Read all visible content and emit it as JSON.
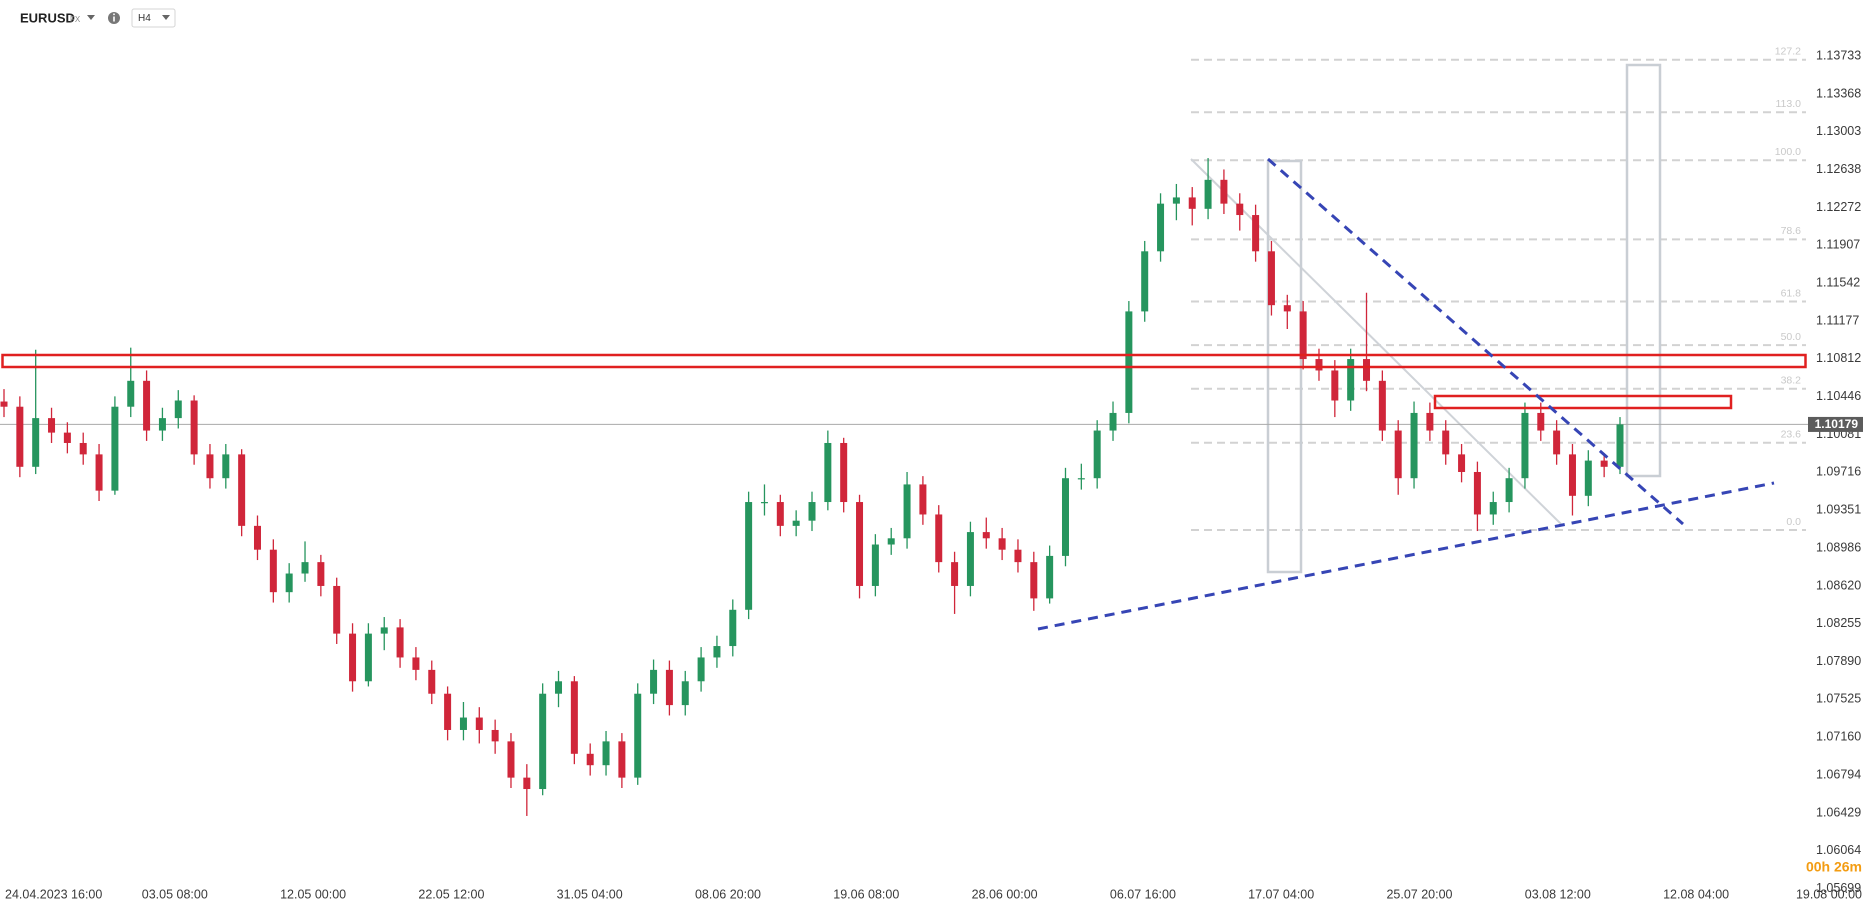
{
  "header": {
    "symbol": "EURUSD",
    "market": "FX",
    "timeframe": "H4",
    "timer": "00h 26m"
  },
  "chart_data": {
    "type": "candlestick",
    "up_color": "#26955e",
    "down_color": "#d0263a",
    "ylim": [
      1.0567,
      1.1393
    ],
    "yticks": [
      1.13733,
      1.13368,
      1.13003,
      1.12638,
      1.12272,
      1.11907,
      1.11542,
      1.11177,
      1.10812,
      1.10446,
      1.10081,
      1.09716,
      1.09351,
      1.08986,
      {
        "value": 1.0862,
        "label": "1.08620"
      },
      1.08255,
      {
        "value": 1.0789,
        "label": "1.07890"
      },
      1.07525,
      {
        "value": 1.0716,
        "label": "1.07160"
      },
      1.06794,
      1.06429,
      1.06064,
      1.05699
    ],
    "xtick_labels": [
      "24.04.2023  16:00",
      "03.05  08:00",
      "12.05  00:00",
      "22.05  12:00",
      "31.05  04:00",
      "08.06  20:00",
      "19.06  08:00",
      "28.06  00:00",
      "06.07  16:00",
      "17.07  04:00",
      "25.07  20:00",
      "03.08  12:00",
      "12.08  04:00",
      "19.08  00:00"
    ],
    "fib_levels": [
      {
        "value": 0,
        "label": "0.0"
      },
      23.6,
      38.2,
      {
        "value": 50,
        "label": "50.0"
      },
      61.8,
      78.6,
      {
        "value": 100,
        "label": "100.0"
      },
      {
        "value": 113,
        "label": "113.0"
      },
      127.2
    ],
    "open": [
      1.104,
      1.1035,
      1.0977,
      1.1024,
      1.101,
      1.1,
      1.0989,
      1.0954,
      1.1035,
      1.106,
      1.1012,
      1.1024,
      1.1041,
      1.0989,
      1.0966,
      1.0989,
      1.092,
      1.0897,
      1.0856,
      1.0874,
      1.0885,
      1.0862,
      1.0816,
      1.077,
      1.0816,
      1.0822,
      1.0793,
      1.0781,
      1.0758,
      1.0723,
      1.0735,
      1.0723,
      1.0712,
      1.0677,
      1.0666,
      1.0758,
      1.077,
      1.07,
      1.0689,
      1.0712,
      1.0677,
      1.0758,
      1.0781,
      1.0747,
      1.077,
      1.0793,
      1.0804,
      1.0839,
      1.0943,
      1.0943,
      1.092,
      1.0925,
      1.0943,
      1.1,
      1.0943,
      1.0862,
      1.0902,
      1.0908,
      1.096,
      1.0931,
      1.0885,
      1.0862,
      1.0914,
      1.0908,
      1.0897,
      1.0885,
      1.085,
      1.0891,
      1.0966,
      1.0966,
      1.1012,
      1.1029,
      1.1127,
      1.1185,
      1.1231,
      1.1237,
      1.1226,
      1.1254,
      1.1231,
      1.122,
      1.1185,
      1.1133,
      1.1127,
      1.1081,
      1.107,
      1.1041,
      1.1081,
      1.106,
      1.1012,
      1.0966,
      1.1029,
      1.1012,
      1.0989,
      1.0972,
      1.0931,
      1.0943,
      1.0966,
      1.1029,
      1.1012,
      1.0989,
      1.0949,
      1.0983,
      1.0977
    ],
    "high": [
      1.1052,
      1.1045,
      1.109,
      1.1034,
      1.102,
      1.101,
      1.0999,
      1.1045,
      1.1092,
      1.107,
      1.1034,
      1.1051,
      1.1046,
      1.0999,
      1.0999,
      1.0994,
      1.093,
      1.0907,
      1.0884,
      1.0905,
      1.0892,
      1.087,
      1.0826,
      1.0826,
      1.0832,
      1.083,
      1.0803,
      1.079,
      1.0765,
      1.075,
      1.0745,
      1.0733,
      1.072,
      1.069,
      1.0768,
      1.078,
      1.0775,
      1.071,
      1.0722,
      1.072,
      1.0768,
      1.0791,
      1.079,
      1.078,
      1.0803,
      1.0814,
      1.0849,
      1.0953,
      1.096,
      1.095,
      1.0935,
      1.0953,
      1.1012,
      1.1005,
      1.095,
      1.0912,
      1.0918,
      1.0972,
      1.0968,
      1.094,
      1.0895,
      1.0924,
      1.0928,
      1.0918,
      1.0907,
      1.0895,
      1.0901,
      1.0976,
      1.098,
      1.1022,
      1.104,
      1.1137,
      1.1195,
      1.1241,
      1.125,
      1.1247,
      1.1275,
      1.1264,
      1.1241,
      1.123,
      1.1195,
      1.1143,
      1.1137,
      1.1091,
      1.108,
      1.1091,
      1.1145,
      1.107,
      1.1022,
      1.104,
      1.1039,
      1.1022,
      1.0999,
      1.0982,
      1.0953,
      1.0976,
      1.1039,
      1.1039,
      1.1022,
      1.0999,
      1.0993,
      1.099,
      1.1025
    ],
    "low": [
      1.1025,
      1.0967,
      1.097,
      1.1,
      1.099,
      1.0979,
      1.0944,
      1.095,
      1.1025,
      1.1002,
      1.1002,
      1.1014,
      1.0979,
      1.0956,
      1.0956,
      1.091,
      1.0887,
      1.0846,
      1.0846,
      1.0866,
      1.0852,
      1.0806,
      1.076,
      1.0765,
      1.08,
      1.0783,
      1.0771,
      1.0748,
      1.0713,
      1.0713,
      1.071,
      1.07,
      1.0667,
      1.064,
      1.066,
      1.0745,
      1.069,
      1.0679,
      1.0679,
      1.0667,
      1.067,
      1.0748,
      1.0737,
      1.0737,
      1.076,
      1.0783,
      1.0794,
      1.083,
      1.093,
      1.091,
      1.091,
      1.0915,
      1.0935,
      1.0933,
      1.085,
      1.0852,
      1.0892,
      1.0898,
      1.0921,
      1.0875,
      1.0835,
      1.0852,
      1.0898,
      1.0887,
      1.0875,
      1.0838,
      1.0845,
      1.0881,
      1.0955,
      1.0956,
      1.1002,
      1.1019,
      1.1117,
      1.1175,
      1.1215,
      1.121,
      1.1216,
      1.1221,
      1.1205,
      1.1175,
      1.1123,
      1.111,
      1.1071,
      1.106,
      1.1025,
      1.1031,
      1.105,
      1.1002,
      1.095,
      1.0956,
      1.1002,
      1.0979,
      1.0962,
      1.0915,
      1.0921,
      1.0933,
      1.0956,
      1.1002,
      1.0979,
      1.093,
      1.0939,
      1.0967,
      1.097
    ],
    "close": [
      1.1035,
      1.0977,
      1.1024,
      1.101,
      1.1,
      1.0989,
      1.0954,
      1.1035,
      1.106,
      1.1012,
      1.1024,
      1.1041,
      1.0989,
      1.0966,
      1.0989,
      1.092,
      1.0897,
      1.0856,
      1.0874,
      1.0885,
      1.0862,
      1.0816,
      1.077,
      1.0816,
      1.0822,
      1.0793,
      1.0781,
      1.0758,
      1.0723,
      1.0735,
      1.0723,
      1.0712,
      1.0677,
      1.0666,
      1.0758,
      1.077,
      1.07,
      1.0689,
      1.0712,
      1.0677,
      1.0758,
      1.0781,
      1.0747,
      1.077,
      1.0793,
      1.0804,
      1.0839,
      1.0943,
      1.0943,
      1.092,
      1.0925,
      1.0943,
      1.1,
      1.0943,
      1.0862,
      1.0902,
      1.0908,
      1.096,
      1.0931,
      1.0885,
      1.0862,
      1.0914,
      1.0908,
      1.0897,
      1.0885,
      1.085,
      1.0891,
      1.0966,
      1.0966,
      1.1012,
      1.1029,
      1.1127,
      1.1185,
      1.1231,
      1.1237,
      1.1226,
      1.1254,
      1.1231,
      1.122,
      1.1185,
      1.1133,
      1.1127,
      1.1081,
      1.107,
      1.1041,
      1.1081,
      1.106,
      1.1012,
      1.0966,
      1.1029,
      1.1012,
      1.0989,
      1.0972,
      1.0931,
      1.0943,
      1.0966,
      1.1029,
      1.1012,
      1.0989,
      1.0949,
      1.0983,
      1.0977,
      1.10179
    ]
  }
}
